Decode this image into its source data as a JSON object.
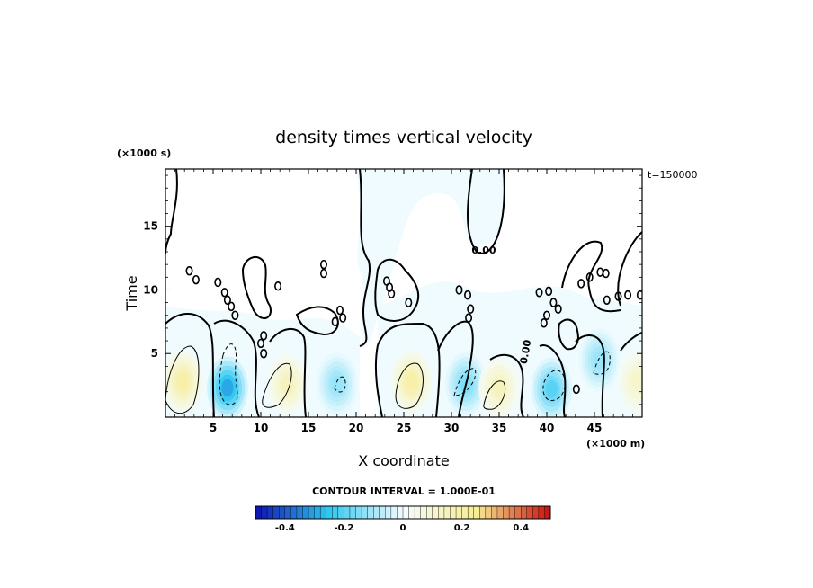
{
  "chart_data": {
    "type": "heatmap",
    "title": "density times vertical velocity",
    "xlabel": "X coordinate",
    "ylabel": "Time",
    "x_unit_label": "(×1000 m)",
    "y_unit_label": "(×1000 s)",
    "time_label": "t=150000",
    "xlim": [
      0,
      50
    ],
    "ylim": [
      0,
      19.5
    ],
    "x_ticks": [
      5,
      10,
      15,
      20,
      25,
      30,
      35,
      40,
      45
    ],
    "y_ticks": [
      5,
      10,
      15
    ],
    "grid": false,
    "contour_interval_text": "CONTOUR INTERVAL = 1.000E-01",
    "contour_zero_label": "0.00",
    "colorbar": {
      "min": -0.5,
      "max": 0.5,
      "tick_values": [
        -0.4,
        -0.2,
        0,
        0.2,
        0.4
      ],
      "tick_labels": [
        "-0.4",
        "-0.2",
        "0",
        "0.2",
        "0.4"
      ],
      "colors": {
        "strong_negative": "#1010b0",
        "negative": "#30c8f0",
        "near_zero": "#f4fcff",
        "positive": "#f8ec90",
        "strong_positive": "#c81010"
      }
    },
    "features": [
      {
        "sign": "positive",
        "x": 1.8,
        "t": 2.8,
        "peak": 0.2
      },
      {
        "sign": "negative",
        "x": 6.5,
        "t": 2.3,
        "peak": -0.3
      },
      {
        "sign": "positive",
        "x": 12.8,
        "t": 2.6,
        "peak": 0.15
      },
      {
        "sign": "negative",
        "x": 18.0,
        "t": 2.6,
        "peak": -0.12
      },
      {
        "sign": "positive",
        "x": 25.8,
        "t": 2.8,
        "peak": 0.2
      },
      {
        "sign": "negative",
        "x": 31.5,
        "t": 2.6,
        "peak": -0.15
      },
      {
        "sign": "positive",
        "x": 35.0,
        "t": 2.3,
        "peak": 0.15
      },
      {
        "sign": "negative",
        "x": 40.5,
        "t": 2.2,
        "peak": -0.2
      },
      {
        "sign": "negative",
        "x": 45.5,
        "t": 4.5,
        "peak": -0.12
      },
      {
        "sign": "positive",
        "x": 49.5,
        "t": 2.8,
        "peak": 0.12
      }
    ]
  }
}
